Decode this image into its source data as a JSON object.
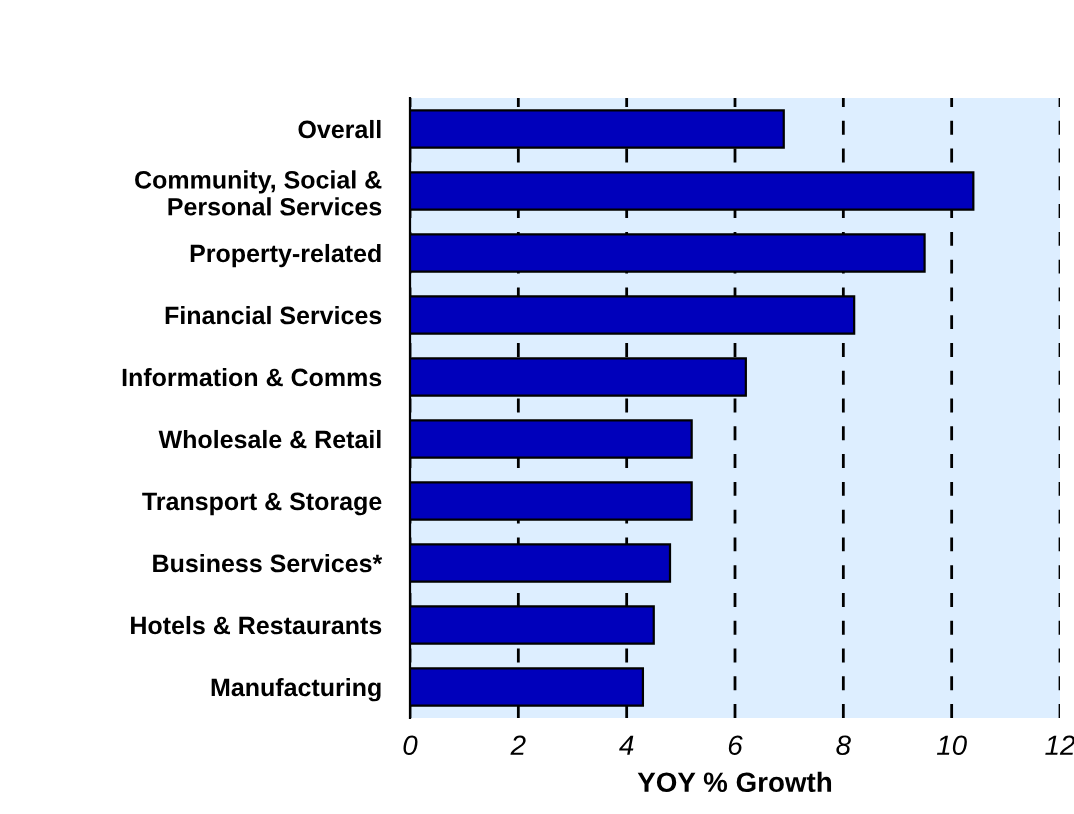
{
  "chart_data": {
    "type": "bar",
    "orientation": "horizontal",
    "xlabel": "YOY % Growth",
    "categories": [
      "Overall",
      "Community, Social &\nPersonal Services",
      "Property-related",
      "Financial Services",
      "Information & Comms",
      "Wholesale & Retail",
      "Transport & Storage",
      "Business Services*",
      "Hotels & Restaurants",
      "Manufacturing"
    ],
    "values": [
      6.9,
      10.4,
      9.5,
      8.2,
      6.2,
      5.2,
      5.2,
      4.8,
      4.5,
      4.3
    ],
    "color": "#0000bb",
    "xlim": [
      0,
      12
    ],
    "xticks": [
      0,
      2,
      4,
      6,
      8,
      10,
      12
    ],
    "grid": "x"
  }
}
